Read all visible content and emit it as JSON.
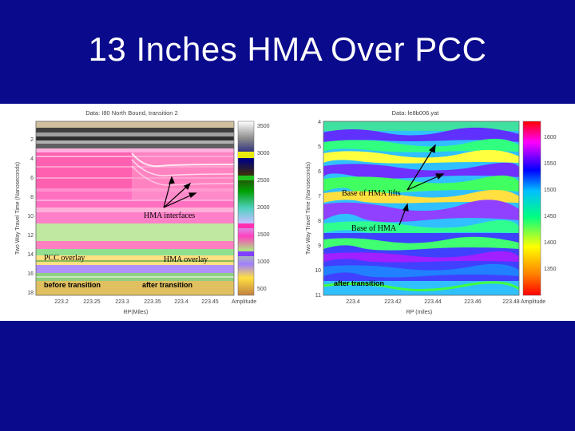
{
  "slide": {
    "title": "13 Inches HMA Over PCC"
  },
  "left_panel": {
    "title": "Data: I80 North Bound, transition 2",
    "ylabel": "Two Way Travel Time (Nanoseconds)",
    "xlabel": "RP(Miles)",
    "yticks": [
      "2",
      "4",
      "6",
      "8",
      "10",
      "12",
      "14",
      "16",
      "18"
    ],
    "xticks": [
      "223.2",
      "223.25",
      "223.3",
      "223.35",
      "223.4",
      "223.45"
    ],
    "colorbar_ticks": [
      "3500",
      "3000",
      "2500",
      "2000",
      "1500",
      "1000",
      "500"
    ],
    "colorbar_label": "Amplitude",
    "annotations": {
      "hma_interfaces": "HMA interfaces",
      "pcc_overlay": "PCC overlay",
      "hma_overlay": "HMA overlay",
      "before_transition": "before transition",
      "after_transition": "after transition"
    }
  },
  "right_panel": {
    "title": "Data: le8b006.yat",
    "ylabel": "Two Way Travel Time (Nanoseconds)",
    "xlabel": "RP (miles)",
    "yticks": [
      "4",
      "5",
      "6",
      "7",
      "8",
      "9",
      "10",
      "11"
    ],
    "xticks": [
      "223.4",
      "223.42",
      "223.44",
      "223.46",
      "223.48"
    ],
    "colorbar_ticks": [
      "1600",
      "1550",
      "1500",
      "1450",
      "1400",
      "1350"
    ],
    "colorbar_label": "Amplitude",
    "annotations": {
      "base_hma_lifts": "Base of HMA lifts",
      "base_hma": "Base of HMA",
      "after_transition": "after transition"
    }
  }
}
